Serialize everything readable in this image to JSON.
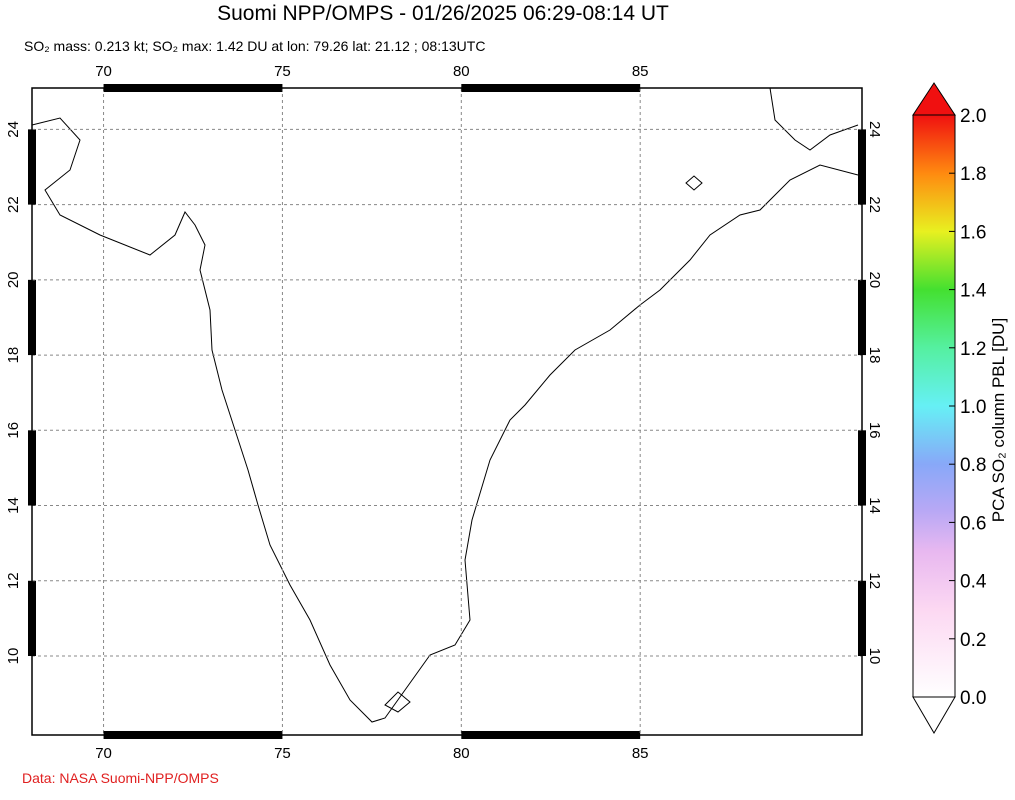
{
  "map": {
    "title": "Suomi NPP/OMPS - 01/26/2025 06:29-08:14 UT",
    "subtitle": "SO₂ mass: 0.213 kt; SO₂ max: 1.42 DU at lon: 79.26 lat: 21.12 ; 08:13UTC",
    "lonlim": [
      68,
      91.2
    ],
    "latlim": [
      7.9,
      25.1
    ],
    "lon_ticks": [
      70,
      75,
      80,
      85
    ],
    "lat_ticks": [
      10,
      12,
      14,
      16,
      18,
      20,
      22,
      24
    ],
    "colorbar": {
      "label": "PCA SO₂ column PBL [DU]",
      "lim": [
        0,
        2
      ],
      "ticks": [
        {
          "value": 0,
          "label": "0.0"
        },
        {
          "value": 0.2,
          "label": "0.2"
        },
        {
          "value": 0.4,
          "label": "0.4"
        },
        {
          "value": 0.6,
          "label": "0.6"
        },
        {
          "value": 0.8,
          "label": "0.8"
        },
        {
          "value": 1,
          "label": "1.0"
        },
        {
          "value": 1.2,
          "label": "1.2"
        },
        {
          "value": 1.4,
          "label": "1.4"
        },
        {
          "value": 1.6,
          "label": "1.6"
        },
        {
          "value": 1.8,
          "label": "1.8"
        },
        {
          "value": 2,
          "label": "2.0"
        }
      ]
    },
    "credit": "Data: NASA Suomi-NPP/OMPS"
  }
}
